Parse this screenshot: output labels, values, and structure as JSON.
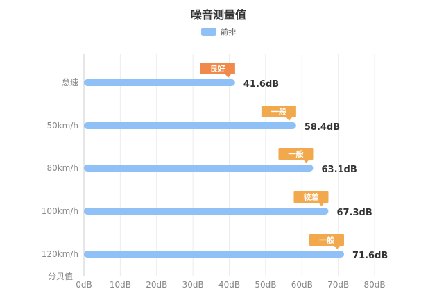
{
  "chart_data": {
    "type": "bar",
    "orientation": "horizontal",
    "title": "噪音测量值",
    "series": [
      {
        "name": "前排",
        "values": [
          41.6,
          58.4,
          63.1,
          67.3,
          71.6
        ]
      }
    ],
    "categories": [
      "怠速",
      "50km/h",
      "80km/h",
      "100km/h",
      "120km/h"
    ],
    "value_labels": [
      "41.6dB",
      "58.4dB",
      "63.1dB",
      "67.3dB",
      "71.6dB"
    ],
    "annotations": [
      "良好",
      "一般",
      "一般",
      "较差",
      "一般"
    ],
    "xticks": [
      "0dB",
      "10dB",
      "20dB",
      "30dB",
      "40dB",
      "50dB",
      "60dB",
      "70dB",
      "80dB"
    ],
    "xlim": [
      0,
      80
    ],
    "ylabel": "分贝值",
    "grid": true,
    "legend": "top-center",
    "colors": {
      "bar": "#8fc0f6",
      "badge_good": "#f08a4b",
      "badge_normal": "#f2a94e"
    }
  }
}
